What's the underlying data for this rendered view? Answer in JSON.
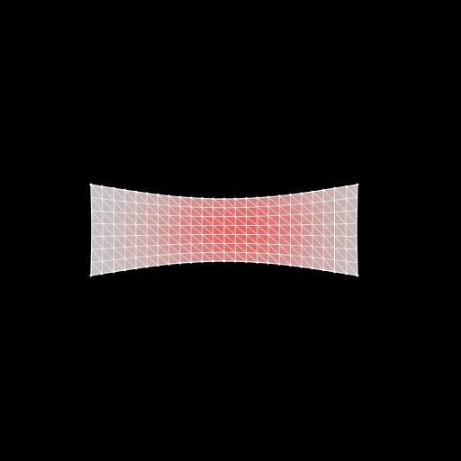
{
  "scene": {
    "background_color": "#000000",
    "mesh": {
      "shape": "stretched strip with concave (pinched) top and bottom edges",
      "columns": 24,
      "rows": 7,
      "colormap": {
        "low": "#c4c4c4",
        "high": "#e06464"
      },
      "wireframe_color": "#ffffff"
    }
  }
}
